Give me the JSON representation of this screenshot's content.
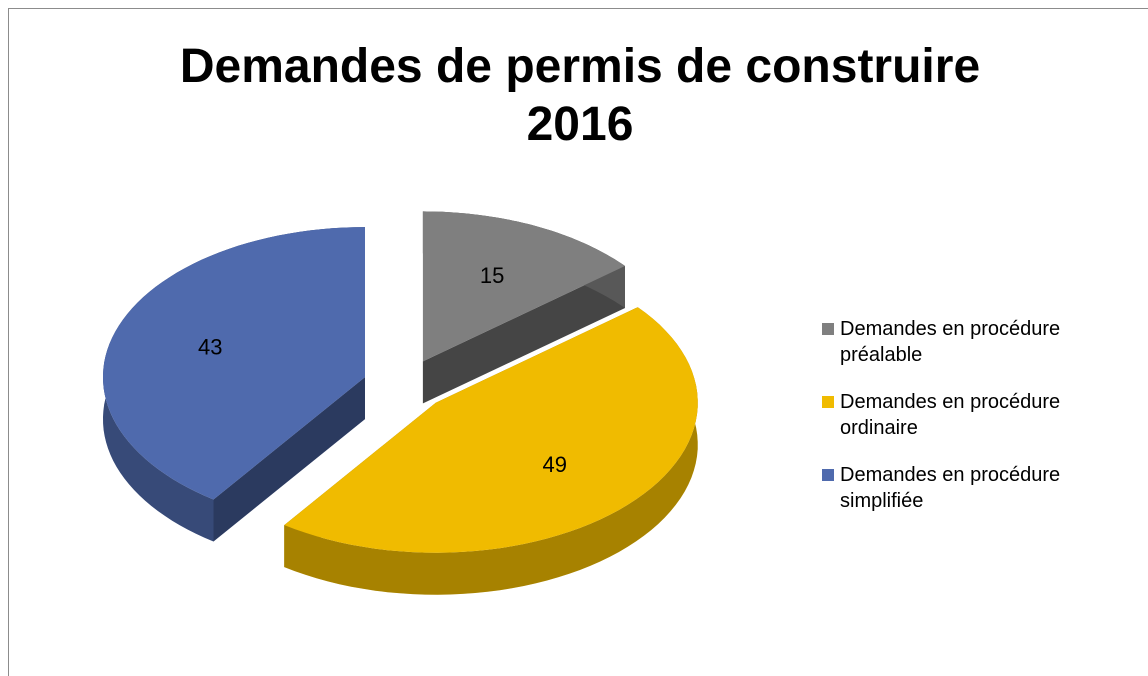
{
  "chart_data": {
    "type": "pie",
    "title": "Demandes de permis de construire 2016",
    "categories": [
      "Demandes en procédure préalable",
      "Demandes en procédure ordinaire",
      "Demandes en procédure simplifiée"
    ],
    "values": [
      15,
      49,
      43
    ],
    "colors": [
      "#7f7f7f",
      "#f0bb00",
      "#4f6aad"
    ],
    "legend": "right"
  }
}
